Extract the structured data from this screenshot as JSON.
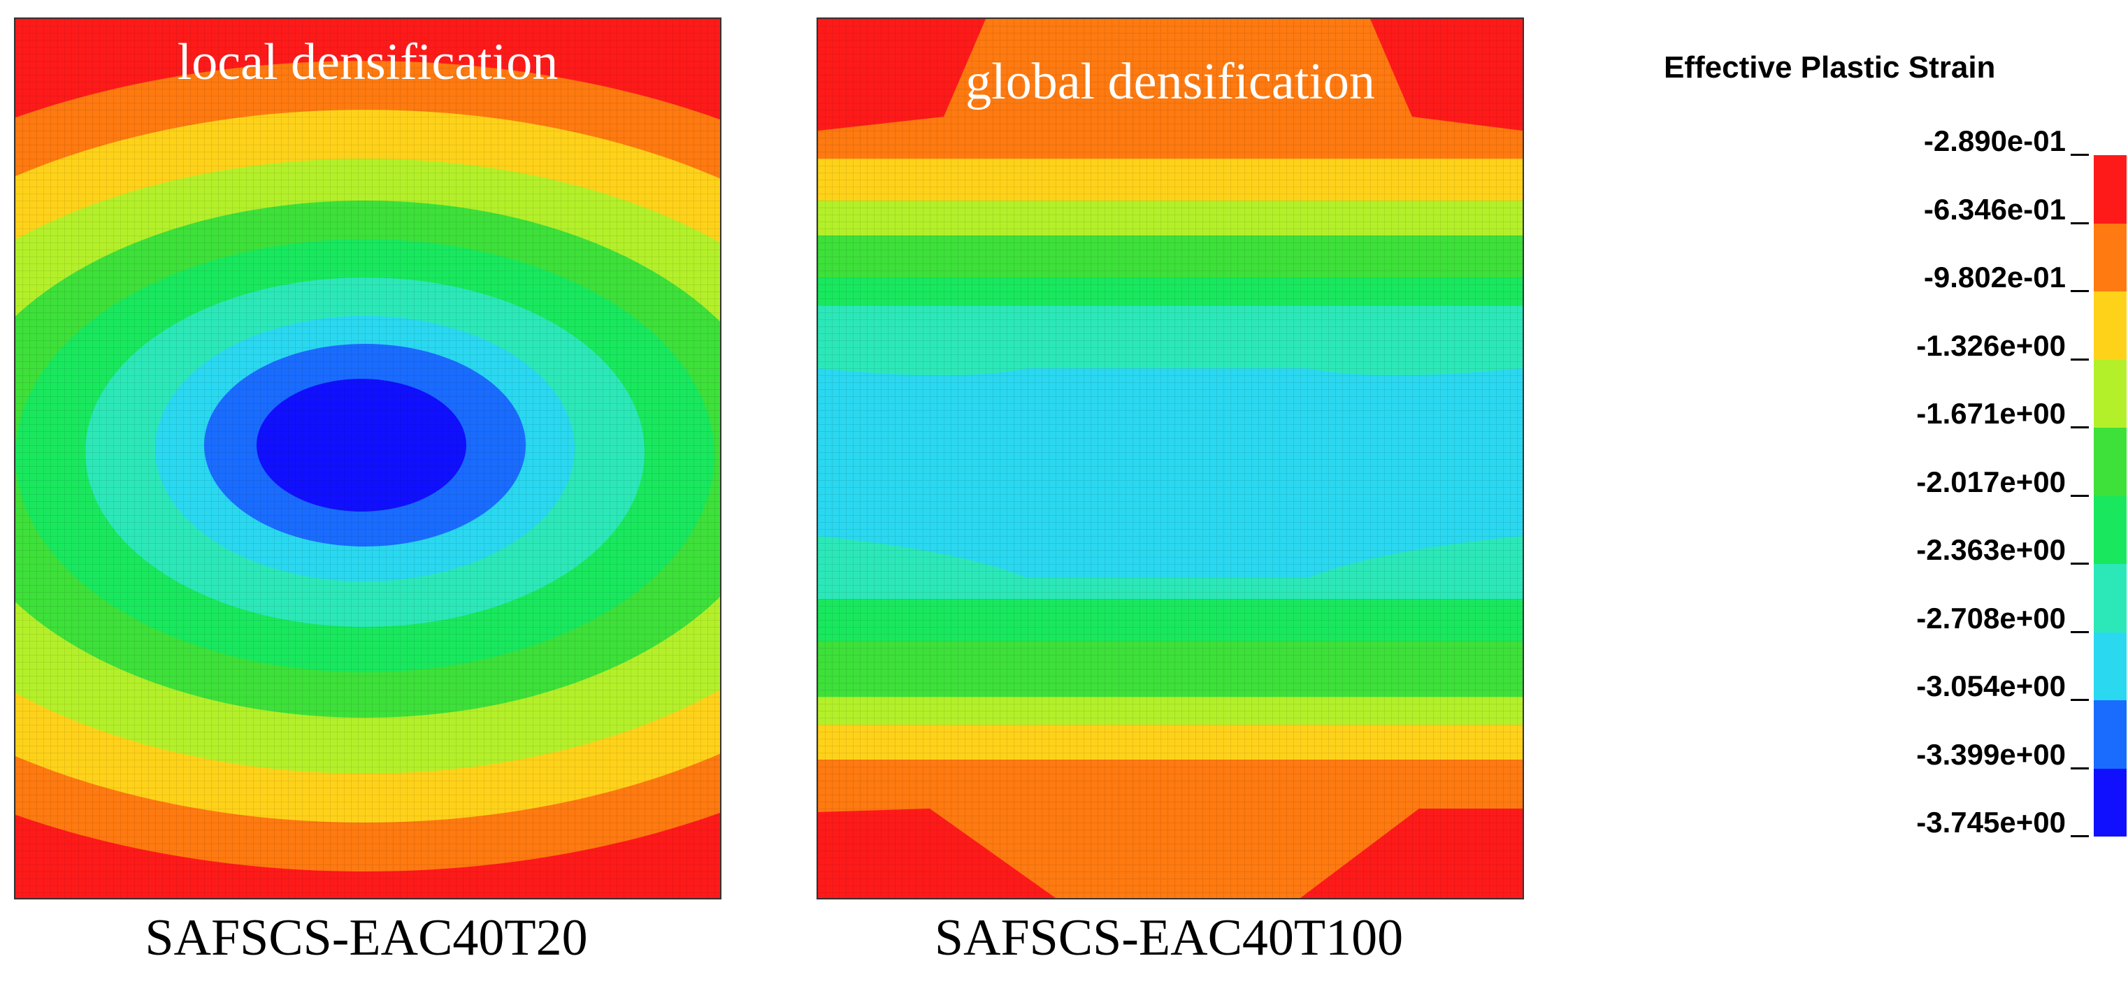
{
  "panels": [
    {
      "label": "local densification",
      "caption": "SAFSCS-EAC40T20"
    },
    {
      "label": "global densification",
      "caption": "SAFSCS-EAC40T100"
    }
  ],
  "legend": {
    "title": "Effective Plastic Strain",
    "ticks": [
      "-2.890e-01",
      "-6.346e-01",
      "-9.802e-01",
      "-1.326e+00",
      "-1.671e+00",
      "-2.017e+00",
      "-2.363e+00",
      "-2.708e+00",
      "-3.054e+00",
      "-3.399e+00",
      "-3.745e+00"
    ],
    "colors": [
      "#ff1a1a",
      "#ff7a10",
      "#ffd21a",
      "#b4f02a",
      "#3ee03a",
      "#19e85e",
      "#2ce8b8",
      "#2ad8f0",
      "#1a6cff",
      "#1010ff"
    ]
  }
}
